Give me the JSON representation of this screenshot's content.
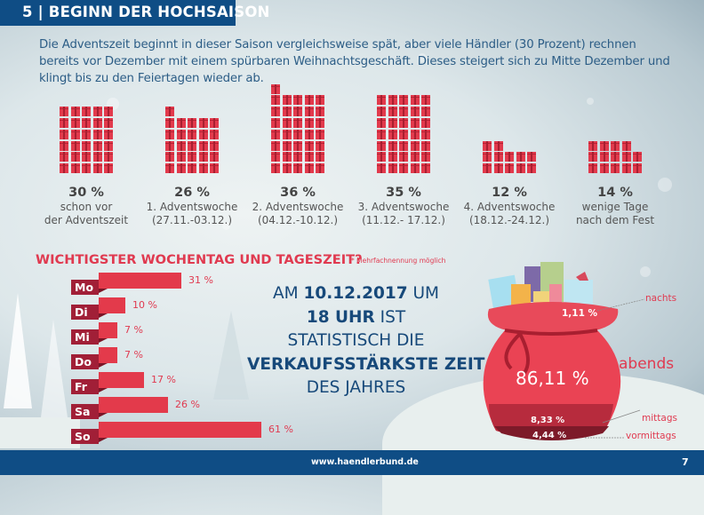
{
  "header": {
    "title": "5 | BEGINN DER HOCHSAISON"
  },
  "intro": {
    "text": "Die Adventszeit beginnt in dieser Saison vergleichsweise spät, aber viele Händler (30 Prozent) rechnen bereits vor Dezember mit einem spürbaren Weihnachtsgeschäft. Dieses steigert sich zu Mitte Dezember und klingt bis zu den Feiertagen wieder ab."
  },
  "colors": {
    "accent_red": "#e23a4c",
    "dark_red": "#a11f37",
    "brand_blue": "#0f4d85",
    "text_blue": "#17497a"
  },
  "chart_data": [
    {
      "type": "bar",
      "title": "",
      "style": "pictogram (gift icons)",
      "categories": [
        "schon vor der Adventszeit",
        "1. Adventswoche (27.11.-03.12.)",
        "2. Adventswoche (04.12.-10.12.)",
        "3. Adventswoche (11.12.- 17.12.)",
        "4. Adventswoche (18.12.-24.12.)",
        "wenige Tage nach dem Fest"
      ],
      "values": [
        30,
        26,
        36,
        35,
        12,
        14
      ],
      "unit": "%",
      "columns": [
        {
          "pct": "30 %",
          "line1": "schon vor",
          "line2": "der Adventszeit",
          "value": 30
        },
        {
          "pct": "26 %",
          "line1": "1. Adventswoche",
          "line2": "(27.11.-03.12.)",
          "value": 26
        },
        {
          "pct": "36 %",
          "line1": "2. Adventswoche",
          "line2": "(04.12.-10.12.)",
          "value": 36
        },
        {
          "pct": "35 %",
          "line1": "3. Adventswoche",
          "line2": "(11.12.- 17.12.)",
          "value": 35
        },
        {
          "pct": "12 %",
          "line1": "4. Adventswoche",
          "line2": "(18.12.-24.12.)",
          "value": 12
        },
        {
          "pct": "14 %",
          "line1": "wenige Tage",
          "line2": "nach dem Fest",
          "value": 14
        }
      ]
    },
    {
      "type": "bar",
      "orientation": "horizontal",
      "title": "WICHTIGSTER WOCHENTAG UND TAGESZEIT?",
      "note": "* Mehrfachnennung möglich",
      "categories": [
        "Mo",
        "Di",
        "Mi",
        "Do",
        "Fr",
        "Sa",
        "So"
      ],
      "values": [
        31,
        10,
        7,
        7,
        17,
        26,
        61
      ],
      "labels": [
        "31 %",
        "10 %",
        "7 %",
        "7 %",
        "17 %",
        "26 %",
        "61 %"
      ],
      "unit": "%"
    },
    {
      "type": "pie",
      "style": "stacked sack illustration",
      "categories": [
        "nachts",
        "abends",
        "mittags",
        "vormittags"
      ],
      "values": [
        1.11,
        86.11,
        8.33,
        4.44
      ],
      "labels": [
        "1,11 %",
        "86,11 %",
        "8,33 %",
        "4,44 %"
      ],
      "unit": "%"
    }
  ],
  "highlight": {
    "l1_a": "AM ",
    "l1_b": "10.12.2017",
    "l1_c": " UM",
    "l2_a": "18 UHR",
    "l2_b": " IST",
    "l3": "STATISTISCH DIE",
    "l4": "VERKAUFSSTÄRKSTE ZEIT",
    "l5": "DES JAHRES"
  },
  "footer": {
    "url": "www.haendlerbund.de",
    "page": "7"
  }
}
